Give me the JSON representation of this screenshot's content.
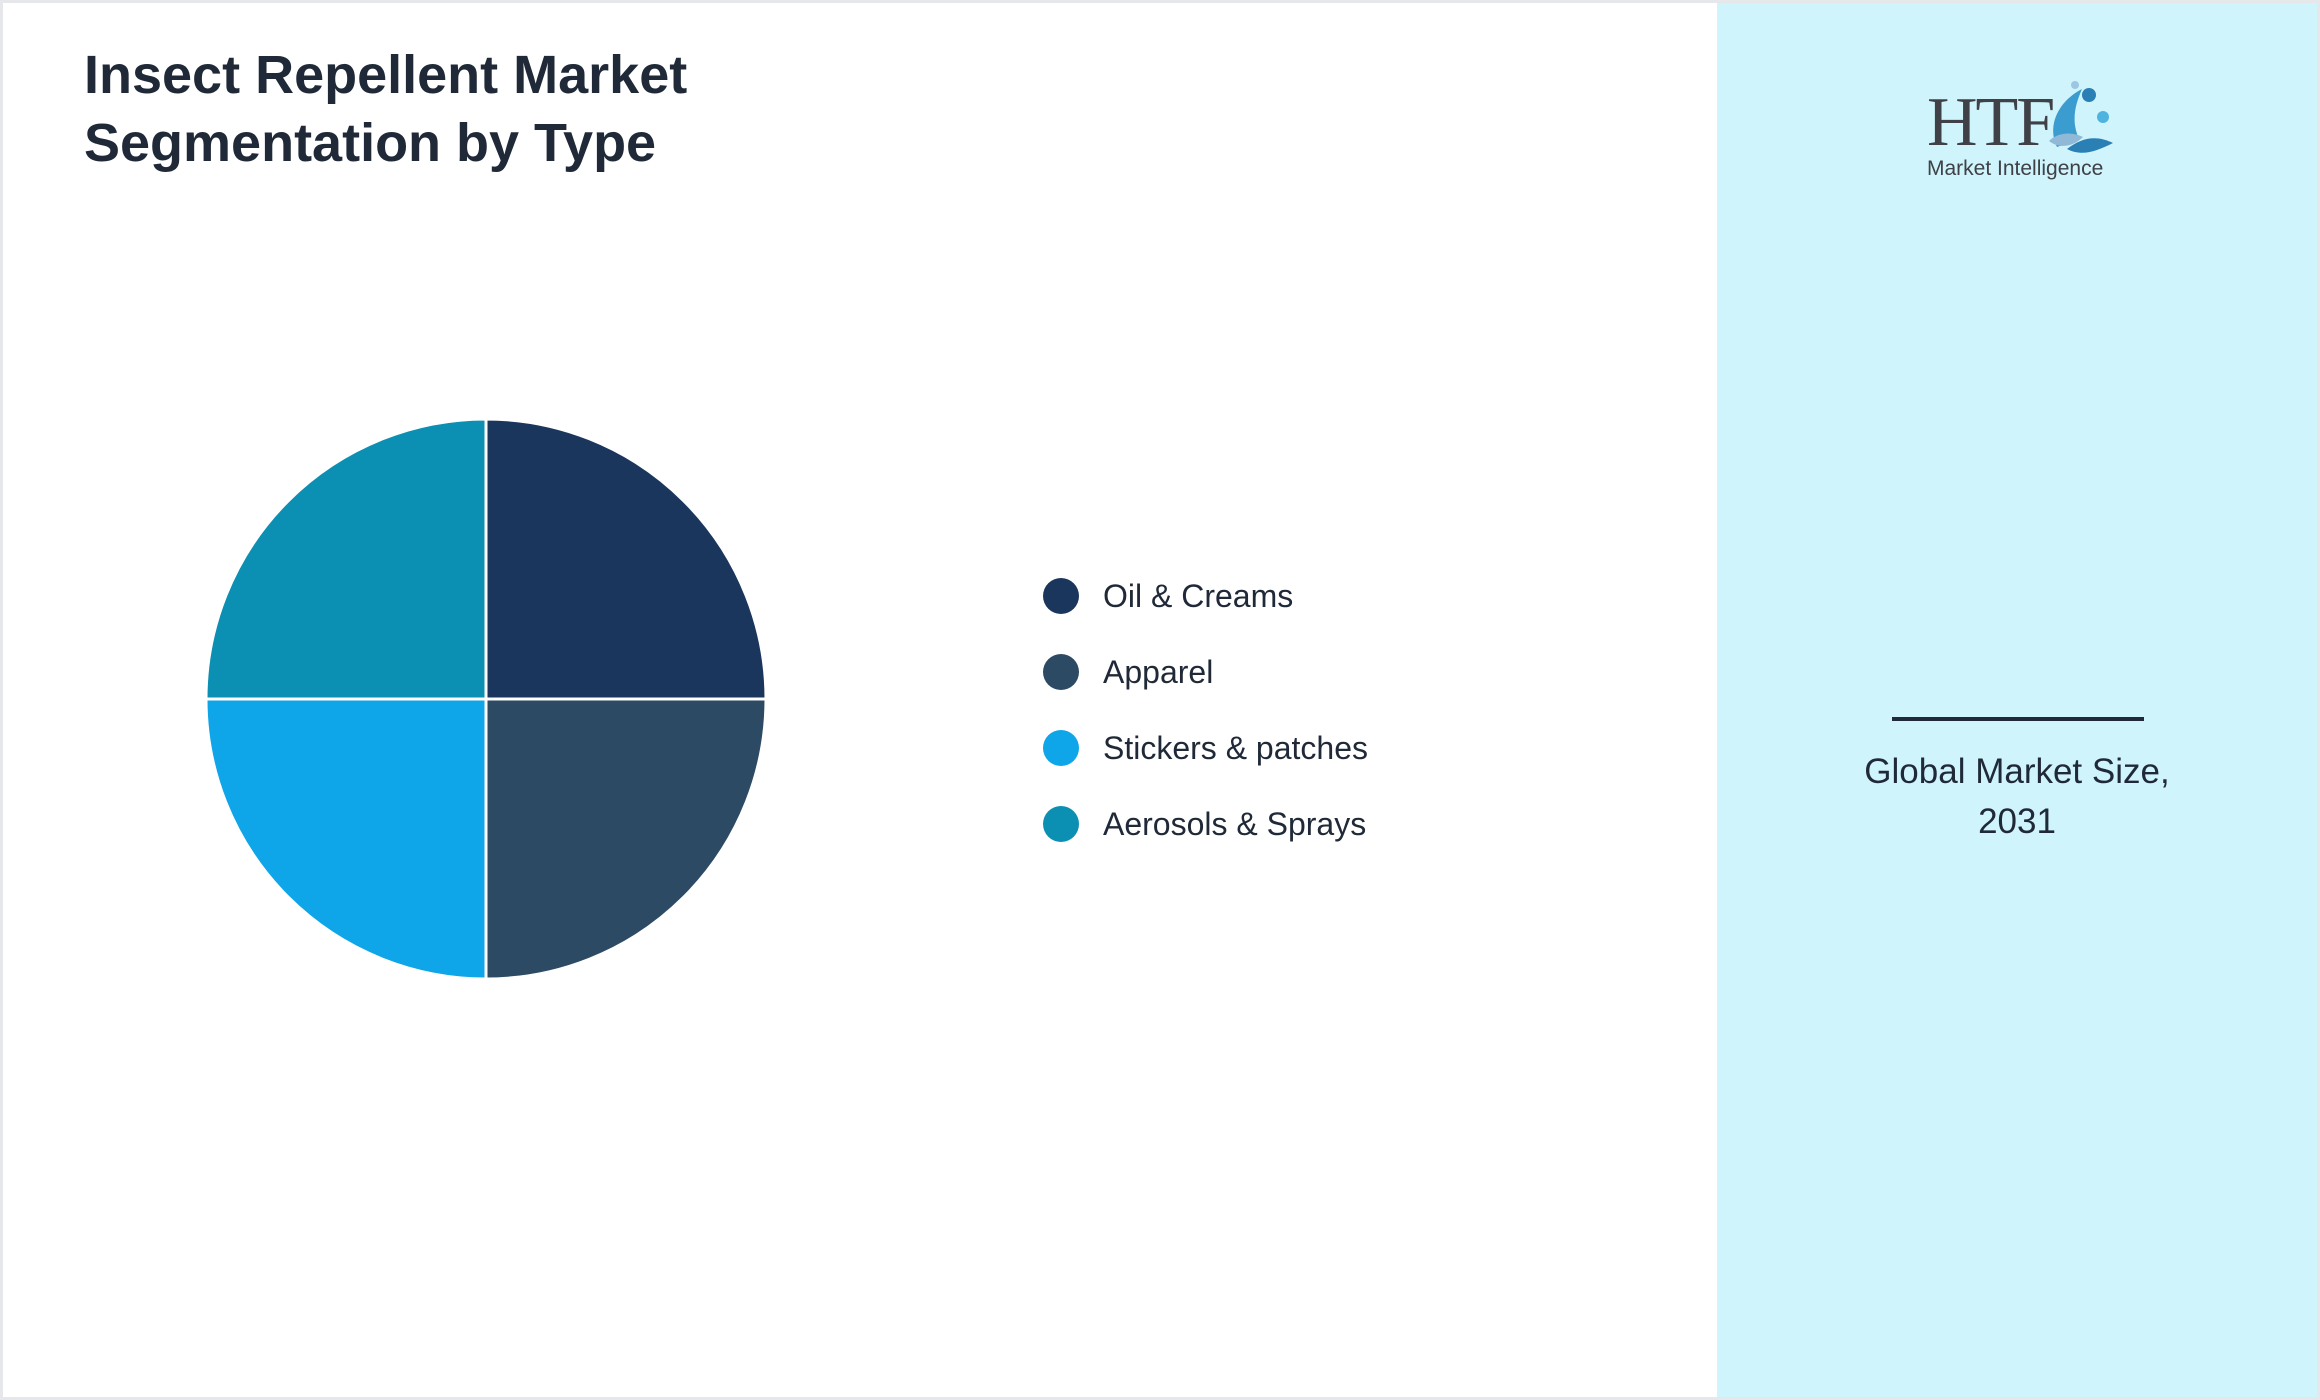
{
  "title": {
    "line1": "Insect Repellent Market",
    "line2": "Segmentation by Type"
  },
  "chart_data": {
    "type": "pie",
    "title": "Insect Repellent Market Segmentation by Type",
    "categories": [
      "Oil & Creams",
      "Apparel",
      "Stickers & patches",
      "Aerosols & Sprays"
    ],
    "values": [
      25,
      25,
      25,
      25
    ],
    "colors": [
      "#1b365d",
      "#2d4a64",
      "#0ea5e9",
      "#0b8fb3"
    ],
    "legend_position": "right"
  },
  "legend": {
    "items": [
      {
        "label": "Oil & Creams",
        "color": "#1b365d"
      },
      {
        "label": "Apparel",
        "color": "#2d4a64"
      },
      {
        "label": "Stickers & patches",
        "color": "#0ea5e9"
      },
      {
        "label": "Aerosols & Sprays",
        "color": "#0b8fb3"
      }
    ]
  },
  "sidebar": {
    "background": "#cff4fc",
    "logo": {
      "main_text": "HTF",
      "sub_text": "Market Intelligence",
      "icon": "htf-logo-icon"
    },
    "caption_line1": "Global Market Size,",
    "caption_line2": "2031"
  }
}
